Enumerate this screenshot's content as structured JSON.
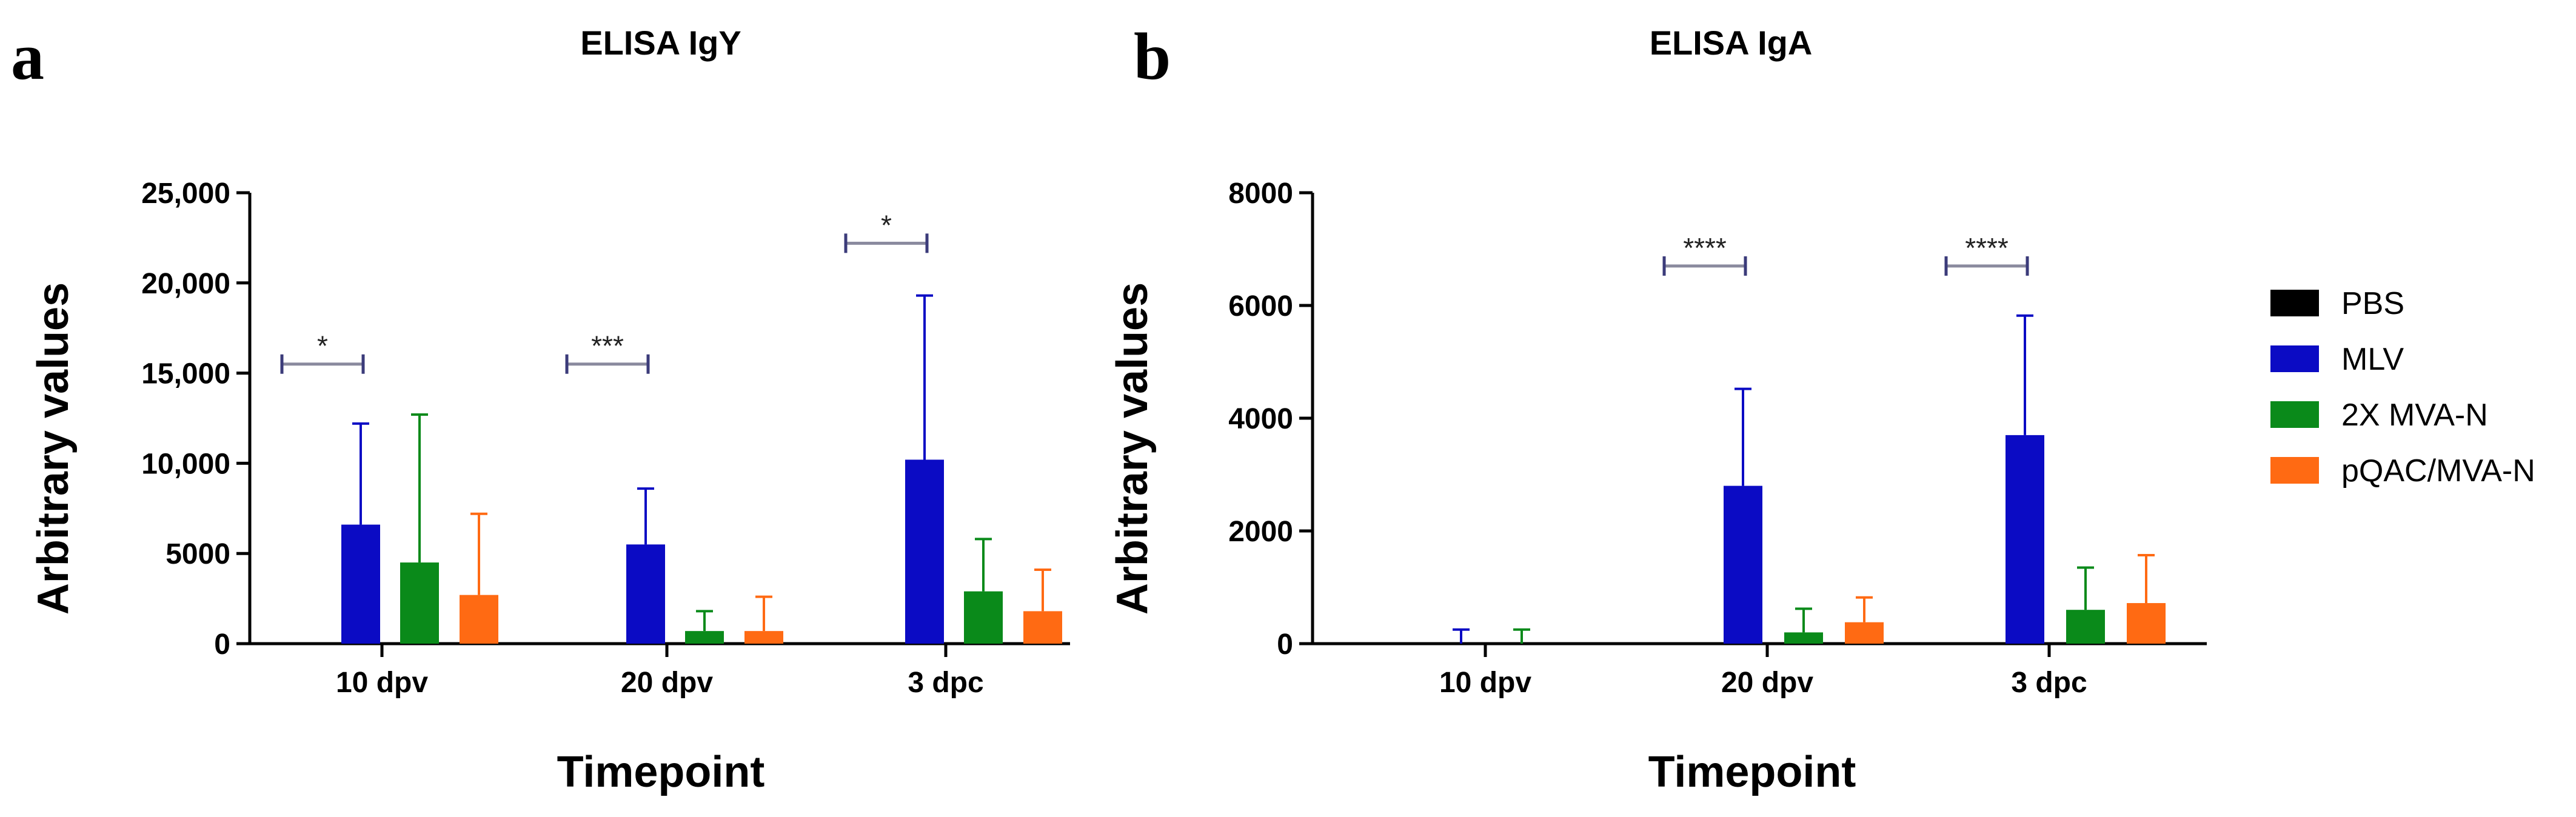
{
  "panels": [
    {
      "letter": "a",
      "chart_data": {
        "type": "bar",
        "title": "ELISA IgY",
        "xlabel": "Timepoint",
        "ylabel": "Arbitrary values",
        "ylim": [
          0,
          25000
        ],
        "yticks": [
          0,
          5000,
          10000,
          15000,
          20000,
          25000
        ],
        "ytick_labels": [
          "0",
          "5000",
          "10,000",
          "15,000",
          "20,000",
          "25,000"
        ],
        "categories": [
          "10 dpv",
          "20 dpv",
          "3 dpc"
        ],
        "series": [
          {
            "name": "PBS",
            "values": [
              0,
              0,
              0
            ],
            "errors": [
              0,
              0,
              0
            ]
          },
          {
            "name": "MLV",
            "values": [
              6600,
              5500,
              10200
            ],
            "errors": [
              5600,
              3100,
              9100
            ]
          },
          {
            "name": "2X MVA-N",
            "values": [
              4500,
              700,
              2900
            ],
            "errors": [
              8200,
              1100,
              2900
            ]
          },
          {
            "name": "pQAC/MVA-N",
            "values": [
              2700,
              700,
              1800
            ],
            "errors": [
              4500,
              1900,
              2300
            ]
          }
        ],
        "significance": [
          {
            "category": "10 dpv",
            "label": "*",
            "y": 15500
          },
          {
            "category": "20 dpv",
            "label": "***",
            "y": 15500
          },
          {
            "category": "3 dpc",
            "label": "*",
            "y": 22200
          }
        ]
      }
    },
    {
      "letter": "b",
      "chart_data": {
        "type": "bar",
        "title": "ELISA IgA",
        "xlabel": "Timepoint",
        "ylabel": "Arbitrary values",
        "ylim": [
          0,
          8000
        ],
        "yticks": [
          0,
          2000,
          4000,
          6000,
          8000
        ],
        "ytick_labels": [
          "0",
          "2000",
          "4000",
          "6000",
          "8000"
        ],
        "categories": [
          "10 dpv",
          "20 dpv",
          "3 dpc"
        ],
        "series": [
          {
            "name": "PBS",
            "values": [
              0,
              0,
              0
            ],
            "errors": [
              0,
              0,
              0
            ]
          },
          {
            "name": "MLV",
            "values": [
              0,
              2800,
              3700
            ],
            "errors": [
              250,
              1720,
              2120
            ]
          },
          {
            "name": "2X MVA-N",
            "values": [
              0,
              200,
              600
            ],
            "errors": [
              250,
              420,
              750
            ]
          },
          {
            "name": "pQAC/MVA-N",
            "values": [
              0,
              380,
              720
            ],
            "errors": [
              0,
              440,
              850
            ]
          }
        ],
        "significance": [
          {
            "category": "20 dpv",
            "label": "****",
            "y": 6700
          },
          {
            "category": "3 dpc",
            "label": "****",
            "y": 6700
          }
        ]
      }
    }
  ],
  "legend": {
    "items": [
      {
        "label": "PBS",
        "color": "#000000"
      },
      {
        "label": "MLV",
        "color": "#0b0bc4"
      },
      {
        "label": "2X MVA-N",
        "color": "#0a8a1a"
      },
      {
        "label": "pQAC/MVA-N",
        "color": "#ff6a13"
      }
    ]
  },
  "colors": {
    "PBS": "#000000",
    "MLV": "#0b0bc4",
    "2X MVA-N": "#0a8a1a",
    "pQAC/MVA-N": "#ff6a13",
    "bracket": "#8a8a9e",
    "axis": "#000000"
  }
}
